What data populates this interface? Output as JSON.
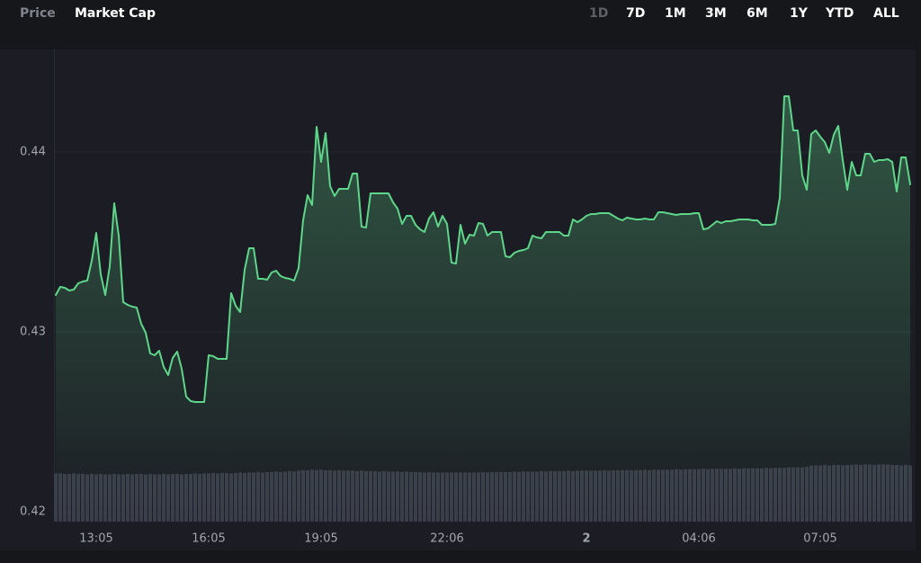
{
  "tabs": {
    "items": [
      "Price",
      "Market Cap"
    ],
    "selected": 1
  },
  "ranges": {
    "items": [
      "1D",
      "7D",
      "1M",
      "3M",
      "6M",
      "1Y",
      "YTD",
      "ALL"
    ],
    "selected": 0
  },
  "chart_data": {
    "type": "line",
    "area": true,
    "grid": true,
    "categories": [
      null,
      null,
      null,
      null,
      null,
      null,
      null,
      null,
      null,
      "13:05",
      null,
      null,
      null,
      null,
      null,
      null,
      null,
      null,
      null,
      null,
      null,
      null,
      null,
      null,
      null,
      null,
      null,
      null,
      null,
      null,
      null,
      null,
      null,
      null,
      "16:05",
      null,
      null,
      null,
      null,
      null,
      null,
      null,
      null,
      null,
      null,
      null,
      null,
      null,
      null,
      null,
      null,
      null,
      null,
      null,
      null,
      null,
      null,
      null,
      null,
      "19:05",
      null,
      null,
      null,
      null,
      null,
      null,
      null,
      null,
      null,
      null,
      null,
      null,
      null,
      null,
      null,
      null,
      null,
      null,
      null,
      null,
      null,
      null,
      null,
      null,
      null,
      null,
      null,
      "22:06",
      null,
      null,
      null,
      null,
      null,
      null,
      null,
      null,
      null,
      null,
      null,
      null,
      null,
      null,
      null,
      null,
      null,
      null,
      null,
      null,
      null,
      null,
      null,
      null,
      null,
      null,
      null,
      null,
      null,
      null,
      "2",
      null,
      null,
      null,
      null,
      null,
      null,
      null,
      null,
      null,
      null,
      null,
      null,
      null,
      null,
      null,
      null,
      null,
      null,
      null,
      null,
      null,
      null,
      null,
      null,
      "04:06",
      null,
      null,
      null,
      null,
      null,
      null,
      null,
      null,
      null,
      null,
      null,
      null,
      null,
      null,
      null,
      null,
      null,
      null,
      null,
      null,
      null,
      null,
      null,
      null,
      null,
      null,
      "07:05",
      null,
      null,
      null,
      null,
      null,
      null,
      null,
      null,
      null,
      null,
      null,
      null,
      null,
      null,
      null,
      null,
      null,
      null,
      null,
      null
    ],
    "series": [
      {
        "color": "#5ed68a",
        "values": [
          0.43205,
          0.4325,
          0.43245,
          0.4323,
          0.43235,
          0.4327,
          0.4328,
          0.43285,
          0.43395,
          0.4355,
          0.4332,
          0.43205,
          0.43365,
          0.43715,
          0.43535,
          0.43165,
          0.4315,
          0.4314,
          0.43135,
          0.43045,
          0.42995,
          0.4288,
          0.4287,
          0.42895,
          0.42805,
          0.4276,
          0.42855,
          0.4289,
          0.42795,
          0.4264,
          0.42615,
          0.4261,
          0.4261,
          0.4261,
          0.4287,
          0.42865,
          0.4285,
          0.4285,
          0.4285,
          0.43215,
          0.43145,
          0.4311,
          0.43345,
          0.43465,
          0.43465,
          0.43295,
          0.43295,
          0.4329,
          0.4333,
          0.4334,
          0.4331,
          0.433,
          0.43295,
          0.43285,
          0.43355,
          0.4362,
          0.4376,
          0.43705,
          0.4414,
          0.43945,
          0.44105,
          0.4381,
          0.43755,
          0.43795,
          0.43795,
          0.43795,
          0.4388,
          0.4388,
          0.43585,
          0.4358,
          0.4377,
          0.4377,
          0.4377,
          0.4377,
          0.4377,
          0.4372,
          0.43685,
          0.436,
          0.43645,
          0.43645,
          0.43595,
          0.4357,
          0.43555,
          0.4363,
          0.43665,
          0.43585,
          0.43645,
          0.436,
          0.43385,
          0.4338,
          0.43595,
          0.4349,
          0.4354,
          0.43535,
          0.43605,
          0.436,
          0.43535,
          0.43555,
          0.43555,
          0.43555,
          0.4342,
          0.43415,
          0.4344,
          0.4345,
          0.43455,
          0.43465,
          0.43535,
          0.43525,
          0.4352,
          0.43555,
          0.43555,
          0.43555,
          0.43555,
          0.43535,
          0.43535,
          0.43625,
          0.4361,
          0.43625,
          0.43645,
          0.43655,
          0.43655,
          0.4366,
          0.4366,
          0.4366,
          0.43645,
          0.4363,
          0.4362,
          0.43635,
          0.4363,
          0.43625,
          0.43625,
          0.4363,
          0.43625,
          0.43625,
          0.43665,
          0.43665,
          0.4366,
          0.43655,
          0.4365,
          0.43655,
          0.43655,
          0.43655,
          0.4366,
          0.4366,
          0.4357,
          0.43575,
          0.43595,
          0.43615,
          0.43605,
          0.43615,
          0.43615,
          0.4362,
          0.43625,
          0.43625,
          0.43625,
          0.4362,
          0.4362,
          0.43595,
          0.43595,
          0.43595,
          0.436,
          0.43745,
          0.4431,
          0.4431,
          0.4412,
          0.4412,
          0.4387,
          0.4379,
          0.441,
          0.4412,
          0.44085,
          0.44055,
          0.43995,
          0.44095,
          0.44145,
          0.43955,
          0.4379,
          0.43945,
          0.4387,
          0.4387,
          0.4399,
          0.4399,
          0.43945,
          0.43955,
          0.43955,
          0.4396,
          0.43945,
          0.4378,
          0.4397,
          0.4397,
          0.4382
        ]
      },
      {
        "color": "#3a3d4a",
        "axis": "y2",
        "type": "bar",
        "values": [
          10.2,
          10.2,
          10.1,
          10.1,
          10.2,
          10.1,
          10.1,
          10.0,
          10.1,
          10.0,
          10.1,
          10.0,
          10.0,
          10.1,
          10.0,
          10.0,
          10.1,
          10.0,
          10.1,
          10.1,
          10.0,
          10.1,
          10.0,
          10.0,
          10.1,
          10.0,
          10.1,
          10.1,
          10.0,
          10.1,
          10.1,
          10.2,
          10.1,
          10.2,
          10.2,
          10.3,
          10.2,
          10.3,
          10.3,
          10.2,
          10.3,
          10.4,
          10.3,
          10.4,
          10.4,
          10.5,
          10.4,
          10.5,
          10.5,
          10.6,
          10.5,
          10.6,
          10.7,
          10.6,
          10.8,
          10.9,
          10.9,
          11.0,
          10.9,
          11.0,
          10.9,
          10.9,
          10.8,
          10.9,
          10.8,
          10.8,
          10.8,
          10.7,
          10.8,
          10.7,
          10.7,
          10.7,
          10.6,
          10.7,
          10.6,
          10.6,
          10.6,
          10.5,
          10.6,
          10.5,
          10.5,
          10.5,
          10.4,
          10.5,
          10.4,
          10.4,
          10.4,
          10.4,
          10.4,
          10.4,
          10.4,
          10.4,
          10.4,
          10.4,
          10.4,
          10.5,
          10.4,
          10.5,
          10.5,
          10.5,
          10.5,
          10.5,
          10.6,
          10.5,
          10.6,
          10.6,
          10.6,
          10.6,
          10.7,
          10.6,
          10.7,
          10.7,
          10.7,
          10.7,
          10.8,
          10.7,
          10.8,
          10.8,
          10.8,
          10.8,
          10.8,
          10.8,
          10.9,
          10.8,
          10.9,
          10.9,
          10.9,
          10.9,
          10.9,
          10.9,
          10.9,
          11.0,
          10.9,
          11.0,
          11.0,
          11.0,
          11.0,
          11.0,
          11.1,
          11.0,
          11.1,
          11.1,
          11.1,
          11.1,
          11.2,
          11.1,
          11.2,
          11.2,
          11.2,
          11.2,
          11.2,
          11.3,
          11.2,
          11.3,
          11.3,
          11.3,
          11.3,
          11.3,
          11.4,
          11.3,
          11.4,
          11.4,
          11.4,
          11.5,
          11.5,
          11.5,
          11.5,
          11.6,
          11.9,
          11.9,
          11.9,
          12.0,
          11.9,
          12.0,
          12.0,
          11.9,
          12.0,
          12.0,
          12.1,
          12.0,
          12.1,
          12.1,
          12.0,
          12.1,
          12.1,
          12.1,
          12.0,
          12.0,
          11.9,
          12.0,
          11.9
        ]
      }
    ],
    "ylim": [
      0.41945,
      0.4457
    ],
    "yticks": [
      0.42,
      0.43,
      0.44
    ],
    "y2lim": [
      0,
      100
    ]
  }
}
